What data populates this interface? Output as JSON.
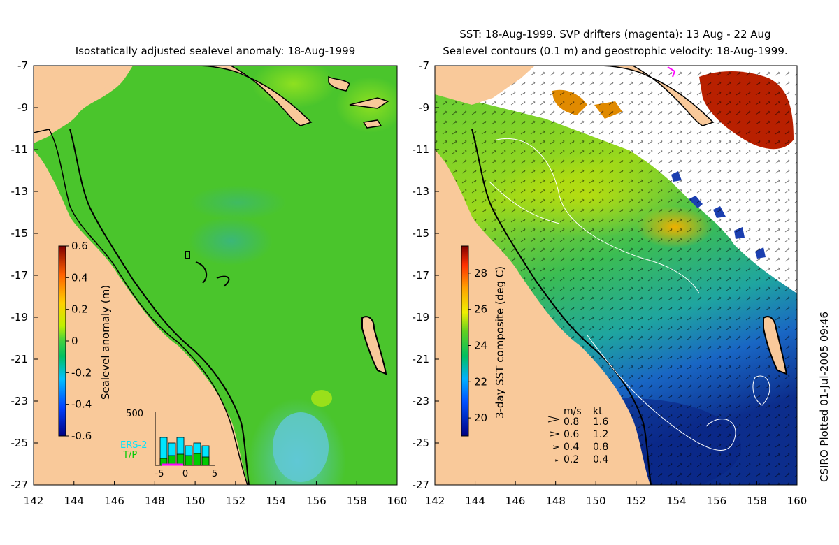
{
  "left_panel": {
    "title": "Isostatically adjusted sealevel anomaly: 18-Aug-1999",
    "colorbar": {
      "label": "Sealevel anomaly (m)",
      "ticks": [
        "0.6",
        "0.4",
        "0.2",
        "0",
        "-0.2",
        "-0.4",
        "-0.6"
      ],
      "range": [
        -0.6,
        0.6
      ]
    },
    "histogram": {
      "ymax_label": "500",
      "x_ticks": [
        "-5",
        "0",
        "5"
      ],
      "legend": [
        "ERS-2",
        "T/P"
      ],
      "colors": {
        "ERS-2": "#00e5ff",
        "T/P": "#00cc00"
      }
    }
  },
  "right_panel": {
    "title_line1": "SST: 18-Aug-1999. SVP drifters (magenta): 13 Aug - 22 Aug",
    "title_line2": "Sealevel contours (0.1 m) and geostrophic velocity: 18-Aug-1999.",
    "colorbar": {
      "label": "3-day SST composite (deg C)",
      "ticks": [
        "28",
        "26",
        "24",
        "22",
        "20"
      ],
      "range": [
        19,
        29.5
      ]
    },
    "velocity_key": {
      "headers": [
        "m/s",
        "kt"
      ],
      "rows": [
        {
          "ms": "0.8",
          "kt": "1.6"
        },
        {
          "ms": "0.6",
          "kt": "1.2"
        },
        {
          "ms": "0.4",
          "kt": "0.8"
        },
        {
          "ms": "0.2",
          "kt": "0.4"
        }
      ]
    }
  },
  "axes": {
    "lat_ticks": [
      "-7",
      "-9",
      "-11",
      "-13",
      "-15",
      "-17",
      "-19",
      "-21",
      "-23",
      "-25",
      "-27"
    ],
    "lon_ticks": [
      "142",
      "144",
      "146",
      "148",
      "150",
      "152",
      "154",
      "156",
      "158",
      "160"
    ],
    "lat_range": [
      -27,
      -7
    ],
    "lon_range": [
      142,
      160
    ]
  },
  "footer": "CSIRO Plotted 01-Jul-2005 09:46",
  "colors": {
    "land": "#f9c99a",
    "sea_anomaly": "#4ac52c",
    "sst_warm": "#8fdc1e",
    "sst_cool": "#1846b0",
    "cloud": "#ffffff"
  }
}
